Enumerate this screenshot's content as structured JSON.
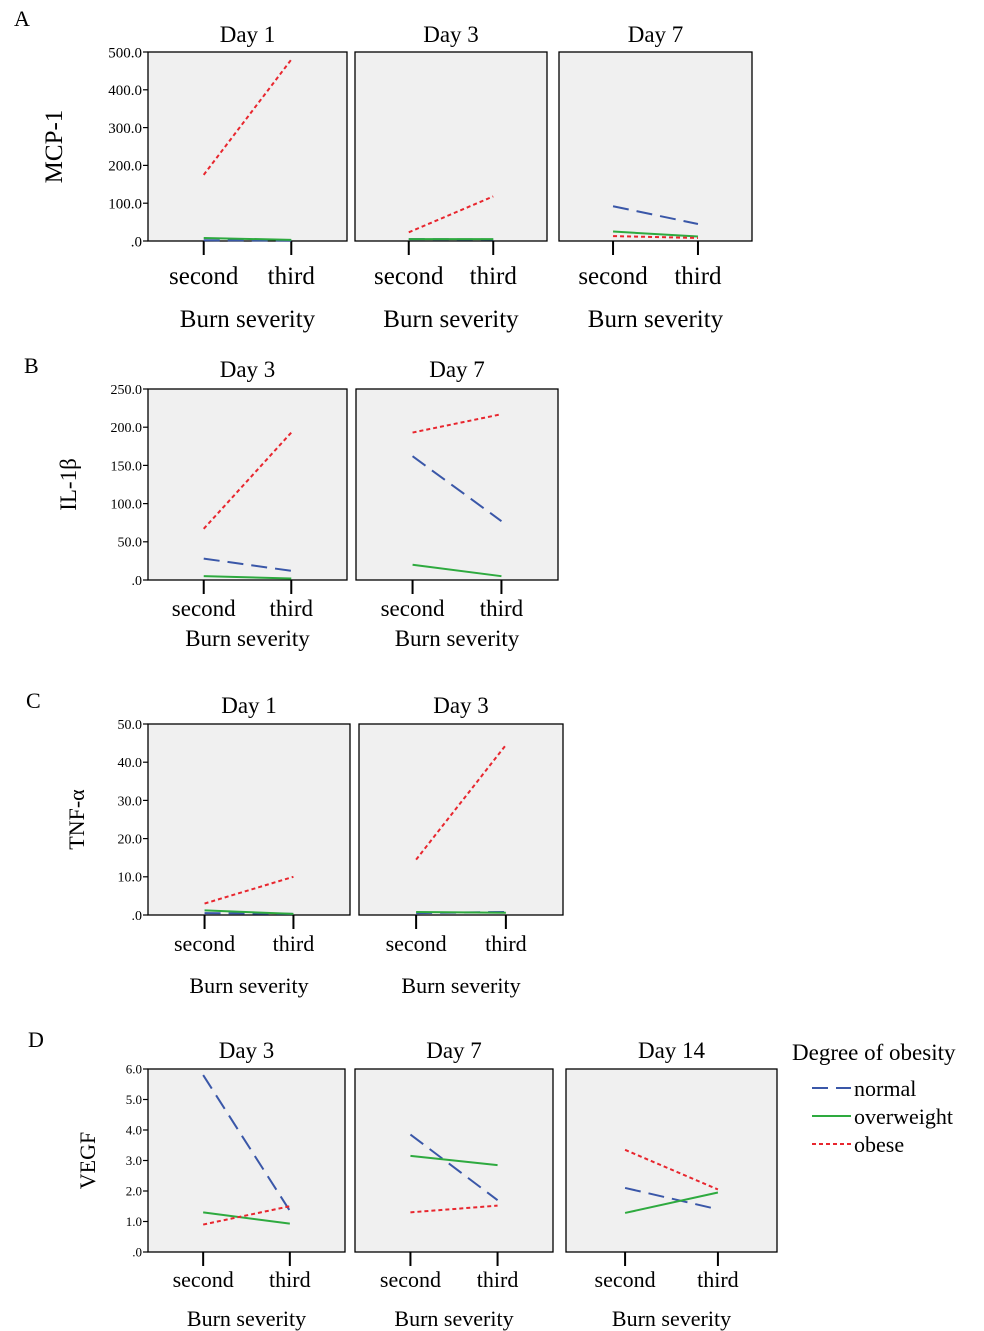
{
  "legend": {
    "title": "Degree of obesity",
    "items": [
      {
        "label": "normal",
        "key": "normal"
      },
      {
        "label": "overweight",
        "key": "overweight"
      },
      {
        "label": "obese",
        "key": "obese"
      }
    ]
  },
  "series_styles": {
    "normal": {
      "color": "#3a57a8",
      "dash": "16,8"
    },
    "overweight": {
      "color": "#2eaa3f",
      "dash": ""
    },
    "obese": {
      "color": "#e8262e",
      "dash": "4,3"
    }
  },
  "panel_bg": "#f0f0f0",
  "chart_data": [
    {
      "type": "line",
      "letter": "A",
      "ylabel": "MCP-1",
      "xlabel": "Burn severity",
      "categories": [
        "second",
        "third"
      ],
      "ylim": [
        0,
        500
      ],
      "yticks": [
        ".0",
        "100.0",
        "200.0",
        "300.0",
        "400.0",
        "500.0"
      ],
      "panels": [
        {
          "title": "Day 1",
          "series": [
            {
              "name": "normal",
              "values": [
                2,
                1
              ]
            },
            {
              "name": "overweight",
              "values": [
                8,
                3
              ]
            },
            {
              "name": "obese",
              "values": [
                175,
                480
              ]
            }
          ]
        },
        {
          "title": "Day 3",
          "series": [
            {
              "name": "normal",
              "values": [
                5,
                4
              ]
            },
            {
              "name": "overweight",
              "values": [
                5,
                5
              ]
            },
            {
              "name": "obese",
              "values": [
                23,
                118
              ]
            }
          ]
        },
        {
          "title": "Day 7",
          "series": [
            {
              "name": "normal",
              "values": [
                92,
                45
              ]
            },
            {
              "name": "overweight",
              "values": [
                25,
                12
              ]
            },
            {
              "name": "obese",
              "values": [
                13,
                8
              ]
            }
          ]
        }
      ]
    },
    {
      "type": "line",
      "letter": "B",
      "ylabel": "IL-1β",
      "xlabel": "Burn severity",
      "categories": [
        "second",
        "third"
      ],
      "ylim": [
        0,
        250
      ],
      "yticks": [
        ".0",
        "50.0",
        "100.0",
        "150.0",
        "200.0",
        "250.0"
      ],
      "panels": [
        {
          "title": "Day 3",
          "series": [
            {
              "name": "normal",
              "values": [
                28,
                12
              ]
            },
            {
              "name": "overweight",
              "values": [
                5,
                2
              ]
            },
            {
              "name": "obese",
              "values": [
                67,
                193
              ]
            }
          ]
        },
        {
          "title": "Day 7",
          "series": [
            {
              "name": "normal",
              "values": [
                162,
                77
              ]
            },
            {
              "name": "overweight",
              "values": [
                20,
                5
              ]
            },
            {
              "name": "obese",
              "values": [
                193,
                217
              ]
            }
          ]
        }
      ]
    },
    {
      "type": "line",
      "letter": "C",
      "ylabel": "TNF-α",
      "xlabel": "Burn severity",
      "categories": [
        "second",
        "third"
      ],
      "ylim": [
        0,
        50
      ],
      "yticks": [
        ".0",
        "10.0",
        "20.0",
        "30.0",
        "40.0",
        "50.0"
      ],
      "panels": [
        {
          "title": "Day 1",
          "series": [
            {
              "name": "normal",
              "values": [
                0.5,
                0.3
              ]
            },
            {
              "name": "overweight",
              "values": [
                1.2,
                0.3
              ]
            },
            {
              "name": "obese",
              "values": [
                3,
                10
              ]
            }
          ]
        },
        {
          "title": "Day 3",
          "series": [
            {
              "name": "normal",
              "values": [
                0.5,
                0.8
              ]
            },
            {
              "name": "overweight",
              "values": [
                0.8,
                0.6
              ]
            },
            {
              "name": "obese",
              "values": [
                14.5,
                44.5
              ]
            }
          ]
        }
      ]
    },
    {
      "type": "line",
      "letter": "D",
      "ylabel": "VEGF",
      "xlabel": "Burn severity",
      "categories": [
        "second",
        "third"
      ],
      "ylim": [
        0,
        6
      ],
      "yticks": [
        ".0",
        "1.0",
        "2.0",
        "3.0",
        "4.0",
        "5.0",
        "6.0"
      ],
      "panels": [
        {
          "title": "Day 3",
          "series": [
            {
              "name": "normal",
              "values": [
                5.8,
                1.35
              ]
            },
            {
              "name": "overweight",
              "values": [
                1.3,
                0.93
              ]
            },
            {
              "name": "obese",
              "values": [
                0.9,
                1.5
              ]
            }
          ]
        },
        {
          "title": "Day 7",
          "series": [
            {
              "name": "normal",
              "values": [
                3.85,
                1.7
              ]
            },
            {
              "name": "overweight",
              "values": [
                3.15,
                2.85
              ]
            },
            {
              "name": "obese",
              "values": [
                1.3,
                1.52
              ]
            }
          ]
        },
        {
          "title": "Day 14",
          "series": [
            {
              "name": "normal",
              "values": [
                2.1,
                1.4
              ]
            },
            {
              "name": "overweight",
              "values": [
                1.28,
                1.95
              ]
            },
            {
              "name": "obese",
              "values": [
                3.35,
                2.05
              ]
            }
          ]
        }
      ]
    }
  ]
}
